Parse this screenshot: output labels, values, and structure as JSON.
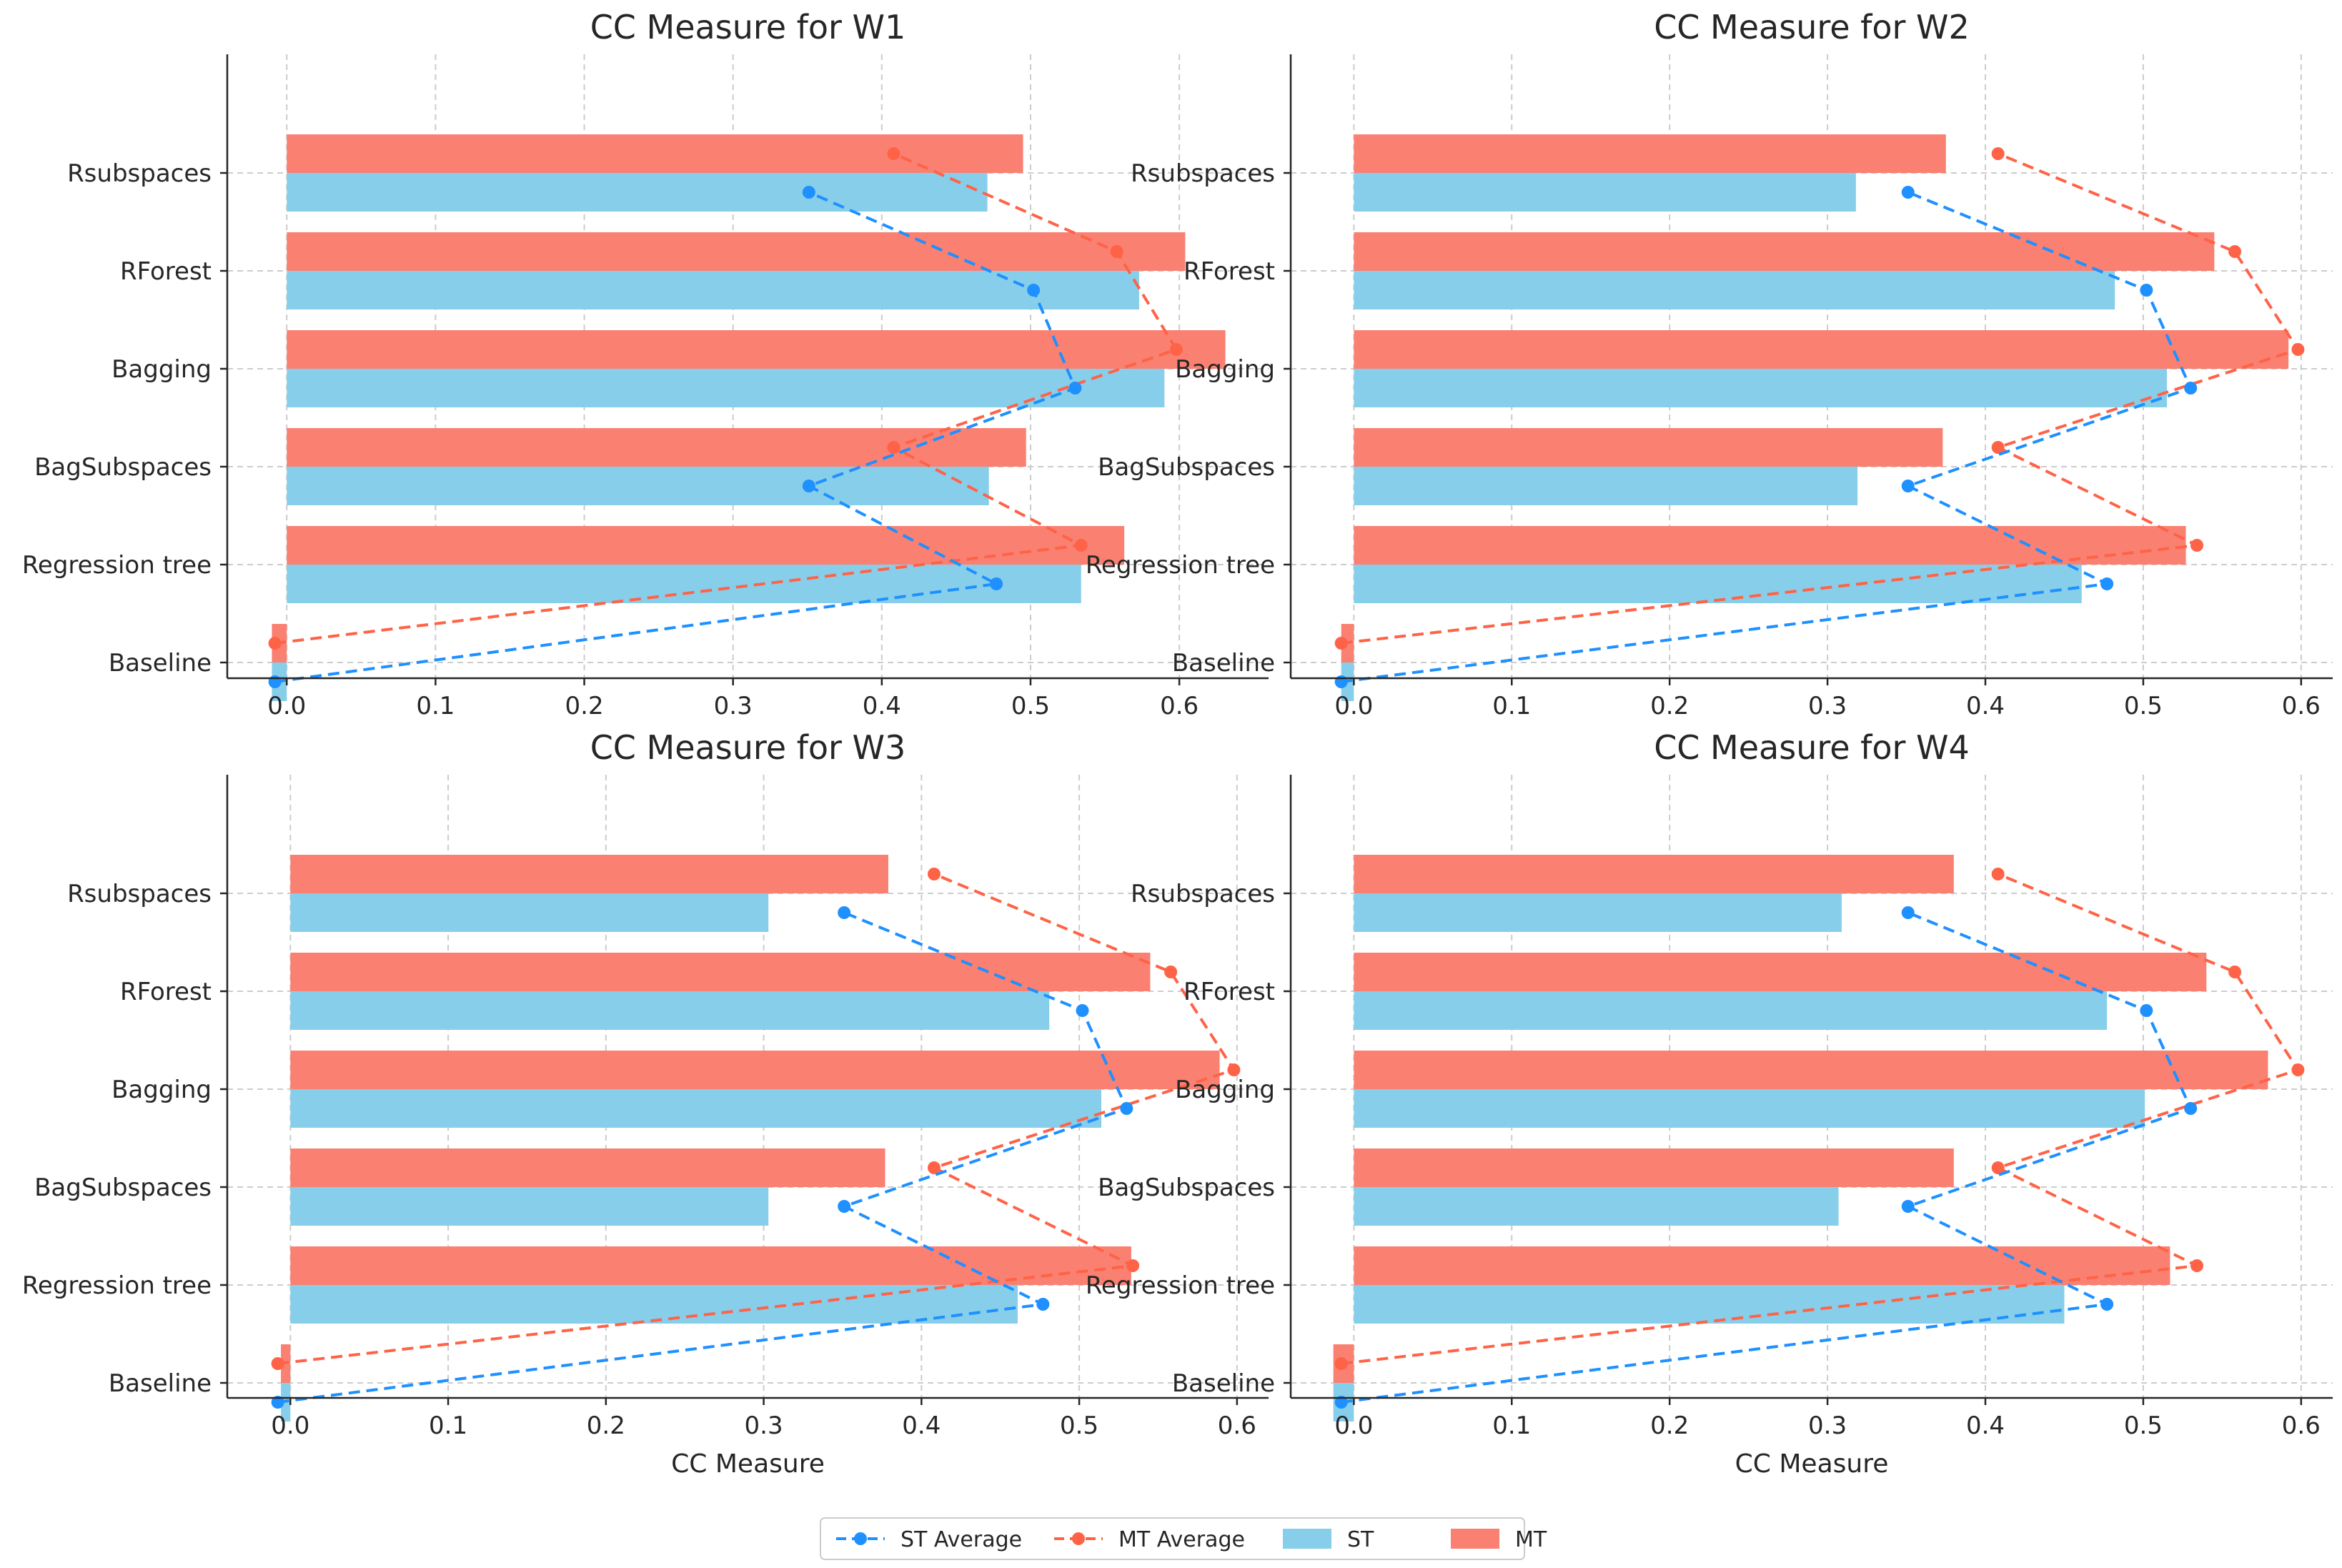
{
  "chart_data": [
    {
      "type": "bar",
      "orientation": "horizontal",
      "title": "CC Measure for W1",
      "xlabel": "",
      "ylabel": "",
      "xlim": [
        -0.04,
        0.66
      ],
      "xticks": [
        "0.0",
        "0.1",
        "0.2",
        "0.3",
        "0.4",
        "0.5",
        "0.6"
      ],
      "categories": [
        "Baseline",
        "Regression tree",
        "BagSubspaces",
        "Bagging",
        "RForest",
        "Rsubspaces"
      ],
      "series": [
        {
          "name": "MT",
          "kind": "bar",
          "values": [
            -0.01,
            0.563,
            0.497,
            0.631,
            0.604,
            0.495
          ]
        },
        {
          "name": "ST",
          "kind": "bar",
          "values": [
            -0.01,
            0.534,
            0.472,
            0.59,
            0.573,
            0.471
          ]
        },
        {
          "name": "MT Average",
          "kind": "line",
          "values": [
            -0.008,
            0.534,
            0.408,
            0.598,
            0.558,
            0.408
          ]
        },
        {
          "name": "ST Average",
          "kind": "line",
          "values": [
            -0.008,
            0.477,
            0.351,
            0.53,
            0.502,
            0.351
          ]
        }
      ],
      "grid": true
    },
    {
      "type": "bar",
      "orientation": "horizontal",
      "title": "CC Measure for W2",
      "xlabel": "",
      "ylabel": "",
      "xlim": [
        -0.04,
        0.62
      ],
      "xticks": [
        "0.0",
        "0.1",
        "0.2",
        "0.3",
        "0.4",
        "0.5",
        "0.6"
      ],
      "categories": [
        "Baseline",
        "Regression tree",
        "BagSubspaces",
        "Bagging",
        "RForest",
        "Rsubspaces"
      ],
      "series": [
        {
          "name": "MT",
          "kind": "bar",
          "values": [
            -0.008,
            0.527,
            0.373,
            0.592,
            0.545,
            0.375
          ]
        },
        {
          "name": "ST",
          "kind": "bar",
          "values": [
            -0.008,
            0.461,
            0.319,
            0.515,
            0.482,
            0.318
          ]
        },
        {
          "name": "MT Average",
          "kind": "line",
          "values": [
            -0.008,
            0.534,
            0.408,
            0.598,
            0.558,
            0.408
          ]
        },
        {
          "name": "ST Average",
          "kind": "line",
          "values": [
            -0.008,
            0.477,
            0.351,
            0.53,
            0.502,
            0.351
          ]
        }
      ],
      "grid": true
    },
    {
      "type": "bar",
      "orientation": "horizontal",
      "title": "CC Measure for W3",
      "xlabel": "CC Measure",
      "ylabel": "",
      "xlim": [
        -0.04,
        0.62
      ],
      "xticks": [
        "0.0",
        "0.1",
        "0.2",
        "0.3",
        "0.4",
        "0.5",
        "0.6"
      ],
      "categories": [
        "Baseline",
        "Regression tree",
        "BagSubspaces",
        "Bagging",
        "RForest",
        "Rsubspaces"
      ],
      "series": [
        {
          "name": "MT",
          "kind": "bar",
          "values": [
            -0.006,
            0.533,
            0.377,
            0.589,
            0.545,
            0.379
          ]
        },
        {
          "name": "ST",
          "kind": "bar",
          "values": [
            -0.006,
            0.461,
            0.303,
            0.514,
            0.481,
            0.303
          ]
        },
        {
          "name": "MT Average",
          "kind": "line",
          "values": [
            -0.008,
            0.534,
            0.408,
            0.598,
            0.558,
            0.408
          ]
        },
        {
          "name": "ST Average",
          "kind": "line",
          "values": [
            -0.008,
            0.477,
            0.351,
            0.53,
            0.502,
            0.351
          ]
        }
      ],
      "grid": true
    },
    {
      "type": "bar",
      "orientation": "horizontal",
      "title": "CC Measure for W4",
      "xlabel": "CC Measure",
      "ylabel": "",
      "xlim": [
        -0.04,
        0.62
      ],
      "xticks": [
        "0.0",
        "0.1",
        "0.2",
        "0.3",
        "0.4",
        "0.5",
        "0.6"
      ],
      "categories": [
        "Baseline",
        "Regression tree",
        "BagSubspaces",
        "Bagging",
        "RForest",
        "Rsubspaces"
      ],
      "series": [
        {
          "name": "MT",
          "kind": "bar",
          "values": [
            -0.013,
            0.517,
            0.38,
            0.579,
            0.54,
            0.38
          ]
        },
        {
          "name": "ST",
          "kind": "bar",
          "values": [
            -0.013,
            0.45,
            0.307,
            0.501,
            0.477,
            0.309
          ]
        },
        {
          "name": "MT Average",
          "kind": "line",
          "values": [
            -0.008,
            0.534,
            0.408,
            0.598,
            0.558,
            0.408
          ]
        },
        {
          "name": "ST Average",
          "kind": "line",
          "values": [
            -0.008,
            0.477,
            0.351,
            0.53,
            0.502,
            0.351
          ]
        }
      ],
      "grid": true
    }
  ],
  "legend": {
    "position": "bottom-center",
    "items": [
      {
        "label": "ST Average",
        "kind": "line-marker",
        "color": "#1e90ff"
      },
      {
        "label": "MT Average",
        "kind": "line-marker",
        "color": "#ff6347"
      },
      {
        "label": "ST",
        "kind": "patch",
        "color": "#87ceeb"
      },
      {
        "label": "MT",
        "kind": "patch",
        "color": "#fa8072"
      }
    ]
  },
  "colors": {
    "MT": "#fa8072",
    "ST": "#87ceeb",
    "MT Average": "#ff6347",
    "ST Average": "#1e90ff"
  }
}
